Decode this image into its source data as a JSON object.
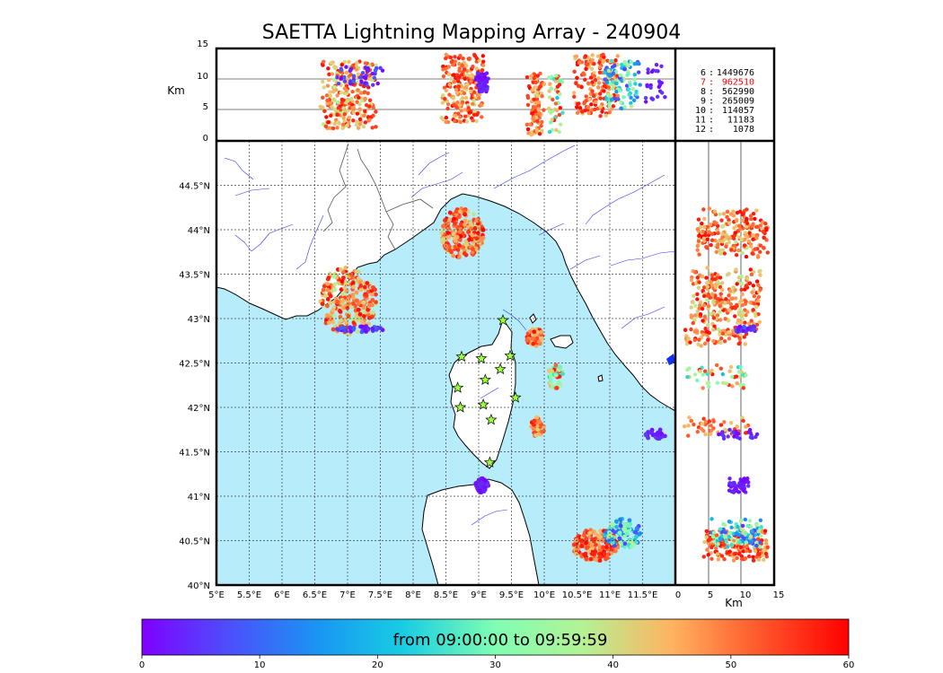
{
  "title": "SAETTA Lightning Mapping Array - 240904",
  "colors": {
    "sea": "#b7ecfb",
    "land": "#ffffff",
    "coast": "#000000",
    "river": "#3333ff",
    "highlight": "#ff0000",
    "station_fill": "#9aff3c"
  },
  "alt_panel": {
    "unit": "Km",
    "ticks": [
      0,
      5,
      10,
      15
    ],
    "range": [
      0,
      15
    ]
  },
  "map": {
    "lon_range": [
      5,
      12
    ],
    "lat_range": [
      40,
      45
    ],
    "lon_ticks": [
      "5°E",
      "5.5°E",
      "6°E",
      "6.5°E",
      "7°E",
      "7.5°E",
      "8°E",
      "8.5°E",
      "9°E",
      "9.5°E",
      "10°E",
      "10.5°E",
      "11°E",
      "11.5°E"
    ],
    "lon_values": [
      5,
      5.5,
      6,
      6.5,
      7,
      7.5,
      8,
      8.5,
      9,
      9.5,
      10,
      10.5,
      11,
      11.5
    ],
    "lat_ticks": [
      "40°N",
      "40.5°N",
      "41°N",
      "41.5°N",
      "42°N",
      "42.5°N",
      "43°N",
      "43.5°N",
      "44°N",
      "44.5°N"
    ],
    "lat_values": [
      40,
      40.5,
      41,
      41.5,
      42,
      42.5,
      43,
      43.5,
      44,
      44.5
    ]
  },
  "stats": [
    {
      "label": " 6",
      "value": "1449676",
      "highlight": false
    },
    {
      "label": " 7",
      "value": " 962510",
      "highlight": true
    },
    {
      "label": " 8",
      "value": " 562990",
      "highlight": false
    },
    {
      "label": " 9",
      "value": " 265009",
      "highlight": false
    },
    {
      "label": "10",
      "value": " 114057",
      "highlight": false
    },
    {
      "label": "11",
      "value": "  11183",
      "highlight": false
    },
    {
      "label": "12",
      "value": "   1078",
      "highlight": false
    }
  ],
  "stations": [
    [
      9.37,
      42.98
    ],
    [
      8.74,
      42.57
    ],
    [
      9.04,
      42.55
    ],
    [
      9.48,
      42.58
    ],
    [
      9.33,
      42.43
    ],
    [
      8.68,
      42.22
    ],
    [
      9.1,
      42.31
    ],
    [
      9.56,
      42.11
    ],
    [
      8.72,
      42.0
    ],
    [
      9.07,
      42.03
    ],
    [
      9.19,
      41.86
    ],
    [
      9.17,
      41.38
    ]
  ],
  "colorbar": {
    "title": "from 09:00:00 to 09:59:59",
    "ticks": [
      "0",
      "10",
      "20",
      "30",
      "40",
      "50",
      "60"
    ],
    "range": [
      0,
      60
    ]
  },
  "clusters": [
    {
      "lon": 7.0,
      "lat": 43.2,
      "rlon": 0.45,
      "rlat": 0.38,
      "alt": [
        2,
        13
      ],
      "t": [
        36,
        60
      ],
      "n": 260
    },
    {
      "lon": 8.75,
      "lat": 43.96,
      "rlon": 0.33,
      "rlat": 0.28,
      "alt": [
        3,
        14
      ],
      "t": [
        38,
        60
      ],
      "n": 220
    },
    {
      "lon": 9.86,
      "lat": 42.79,
      "rlon": 0.13,
      "rlat": 0.1,
      "alt": [
        1,
        11
      ],
      "t": [
        40,
        60
      ],
      "n": 60
    },
    {
      "lon": 10.17,
      "lat": 42.35,
      "rlon": 0.12,
      "rlat": 0.14,
      "alt": [
        1,
        11
      ],
      "t": [
        20,
        60
      ],
      "n": 50
    },
    {
      "lon": 9.9,
      "lat": 41.78,
      "rlon": 0.1,
      "rlat": 0.11,
      "alt": [
        1,
        11
      ],
      "t": [
        40,
        60
      ],
      "n": 45
    },
    {
      "lon": 10.78,
      "lat": 40.45,
      "rlon": 0.36,
      "rlat": 0.18,
      "alt": [
        4,
        14
      ],
      "t": [
        42,
        60
      ],
      "n": 180
    },
    {
      "lon": 11.2,
      "lat": 40.58,
      "rlon": 0.28,
      "rlat": 0.17,
      "alt": [
        5,
        13
      ],
      "t": [
        6,
        40
      ],
      "n": 110
    },
    {
      "lon": 9.05,
      "lat": 41.12,
      "rlon": 0.1,
      "rlat": 0.08,
      "alt": [
        8,
        11
      ],
      "t": [
        0,
        5
      ],
      "n": 60
    },
    {
      "lon": 11.7,
      "lat": 41.7,
      "rlon": 0.18,
      "rlat": 0.06,
      "alt": [
        6,
        13
      ],
      "t": [
        0,
        6
      ],
      "n": 25
    },
    {
      "lon": 7.2,
      "lat": 42.88,
      "rlon": 0.38,
      "rlat": 0.04,
      "alt": [
        9,
        12
      ],
      "t": [
        0,
        10
      ],
      "n": 40
    }
  ]
}
